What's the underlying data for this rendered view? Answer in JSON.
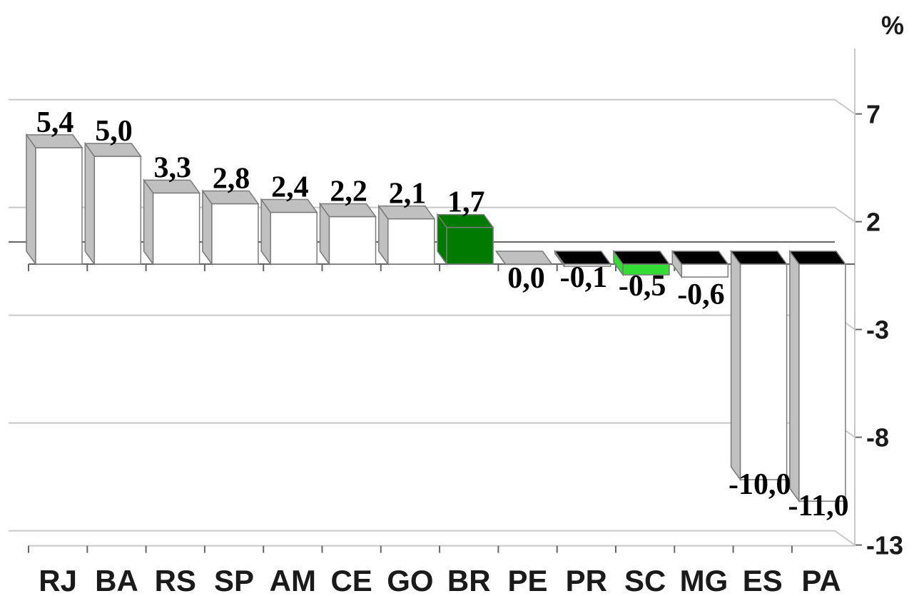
{
  "chart_data": {
    "type": "bar",
    "ylabel": "%",
    "categories": [
      "RJ",
      "BA",
      "RS",
      "SP",
      "AM",
      "CE",
      "GO",
      "BR",
      "PE",
      "PR",
      "SC",
      "MG",
      "ES",
      "PA"
    ],
    "values": [
      5.4,
      5.0,
      3.3,
      2.8,
      2.4,
      2.2,
      2.1,
      1.7,
      0.0,
      -0.1,
      -0.5,
      -0.6,
      -10.0,
      -11.0
    ],
    "data_labels": [
      "5,4",
      "5,0",
      "3,3",
      "2,8",
      "2,4",
      "2,2",
      "2,1",
      "1,7",
      "0,0",
      "-0,1",
      "-0,5",
      "-0,6",
      "-10,0",
      "-11,0"
    ],
    "yticks": [
      7,
      2,
      -3,
      -8,
      -13
    ],
    "ytick_labels": [
      "7",
      "2",
      "-3",
      "-8",
      "-13"
    ],
    "ylim": [
      -13,
      7
    ],
    "grid": true,
    "legend": false,
    "highlight": {
      "BR": "#007a00",
      "SC": "#33dd33"
    },
    "colors": {
      "bar_face": "#ffffff",
      "bar_side": "#c0c0c0",
      "bar_edge": "#7a7a7a",
      "negative_top": "#000000",
      "grid": "#c8c8c8",
      "axis": "#666666"
    }
  }
}
